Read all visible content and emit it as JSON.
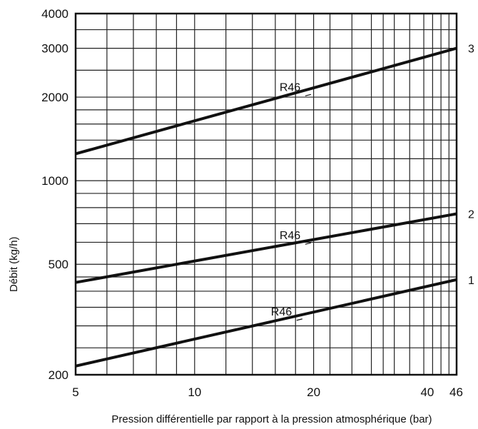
{
  "chart_data": {
    "type": "line",
    "xlabel": "Pression différentielle par rapport à la pression atmosphérique (bar)",
    "ylabel": "Débit (kg/h)",
    "x_scale": "log",
    "y_scale": "log",
    "xlim": [
      5,
      46
    ],
    "ylim": [
      200,
      4000
    ],
    "x_ticks": [
      {
        "value": 5,
        "label": "5"
      },
      {
        "value": 10,
        "label": "10"
      },
      {
        "value": 20,
        "label": "20"
      },
      {
        "value": 40,
        "label": "40"
      },
      {
        "value": 46,
        "label": "46"
      }
    ],
    "y_ticks": [
      {
        "value": 200,
        "label": "200"
      },
      {
        "value": 500,
        "label": "500"
      },
      {
        "value": 1000,
        "label": "1000"
      },
      {
        "value": 2000,
        "label": "2000"
      },
      {
        "value": 3000,
        "label": "3000"
      },
      {
        "value": 4000,
        "label": "4000"
      }
    ],
    "x_grid": [
      5,
      6,
      7,
      8,
      9,
      10,
      12,
      14,
      16,
      18,
      20,
      22,
      25,
      28,
      30,
      32,
      35,
      38,
      40,
      42,
      44,
      46
    ],
    "y_grid": [
      200,
      250,
      300,
      350,
      400,
      450,
      500,
      600,
      700,
      800,
      900,
      1000,
      1200,
      1400,
      1600,
      1800,
      2000,
      2500,
      3000,
      3500,
      4000
    ],
    "grid": true,
    "series": [
      {
        "name": "1",
        "annotation": "R46",
        "x": [
          5,
          46
        ],
        "y": [
          215,
          440
        ]
      },
      {
        "name": "2",
        "annotation": "R46",
        "x": [
          5,
          46
        ],
        "y": [
          430,
          760
        ]
      },
      {
        "name": "3",
        "annotation": "R46",
        "x": [
          5,
          46
        ],
        "y": [
          1250,
          3000
        ]
      }
    ]
  }
}
